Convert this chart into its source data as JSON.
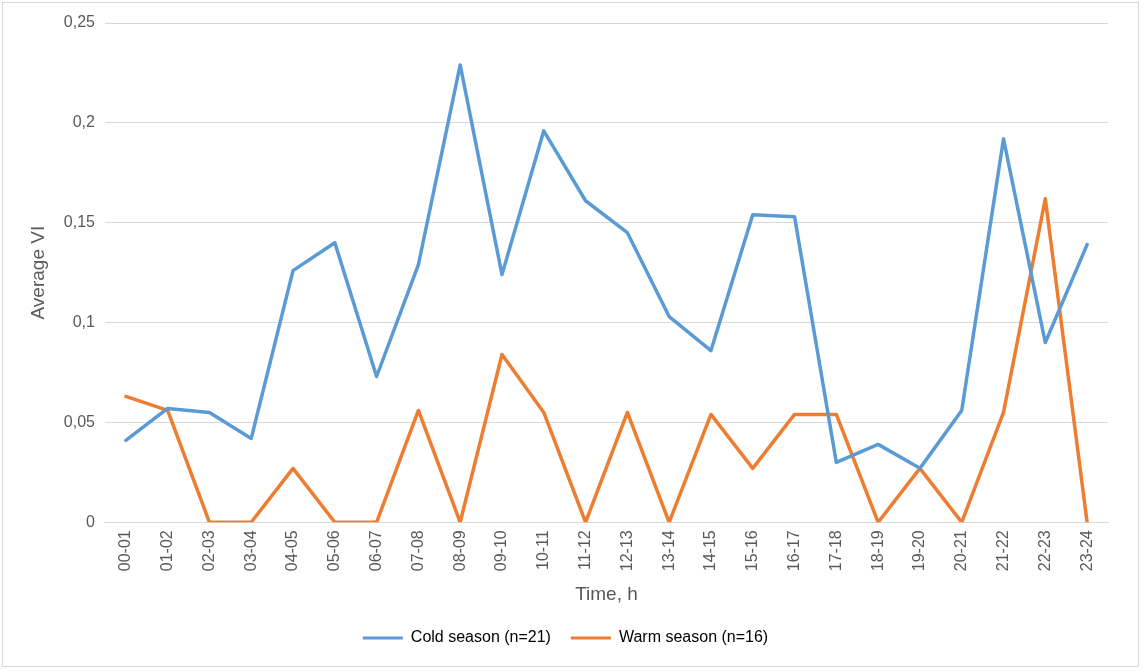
{
  "chart_data": {
    "type": "line",
    "xlabel": "Time, h",
    "ylabel": "Average VI",
    "categories": [
      "00-01",
      "01-02",
      "02-03",
      "03-04",
      "04-05",
      "05-06",
      "06-07",
      "07-08",
      "08-09",
      "09-10",
      "10-11",
      "11-12",
      "12-13",
      "13-14",
      "14-15",
      "15-16",
      "16-17",
      "17-18",
      "18-19",
      "19-20",
      "20-21",
      "21-22",
      "22-23",
      "23-24"
    ],
    "series": [
      {
        "name": "Cold season (n=21)",
        "color": "#5b9bd5",
        "values": [
          0.041,
          0.057,
          0.055,
          0.042,
          0.126,
          0.14,
          0.073,
          0.129,
          0.229,
          0.124,
          0.196,
          0.161,
          0.145,
          0.103,
          0.086,
          0.154,
          0.153,
          0.03,
          0.039,
          0.027,
          0.056,
          0.192,
          0.09,
          0.139
        ]
      },
      {
        "name": "Warm season (n=16)",
        "color": "#ed7d31",
        "values": [
          0.063,
          0.056,
          0,
          0,
          0.027,
          0,
          0,
          0.056,
          0,
          0.084,
          0.055,
          0,
          0.055,
          0,
          0.054,
          0.027,
          0.054,
          0.054,
          0,
          0.027,
          0,
          0.055,
          0.162,
          0
        ]
      }
    ],
    "ylim": [
      0,
      0.25
    ],
    "yticks": [
      0,
      {
        "value": 0.05,
        "label": "0,05"
      },
      {
        "value": 0.1,
        "label": "0,1"
      },
      {
        "value": 0.15,
        "label": "0,15"
      },
      {
        "value": 0.2,
        "label": "0,2"
      },
      {
        "value": 0.25,
        "label": "0,25"
      }
    ],
    "grid": "y",
    "legend": "bottom",
    "marker": "none",
    "line_style": "solid"
  }
}
